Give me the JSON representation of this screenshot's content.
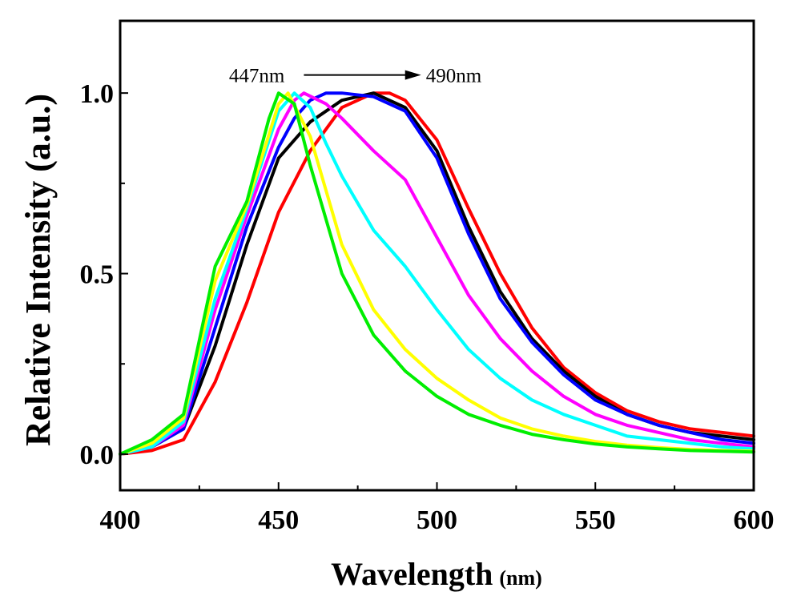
{
  "chart_data": {
    "type": "line",
    "title": "",
    "xlabel": "Wavelength",
    "xlabel_unit": "(nm)",
    "ylabel": "Relative Intensity (a.u.)",
    "xlim": [
      400,
      600
    ],
    "ylim": [
      -0.1,
      1.2
    ],
    "xticks": [
      400,
      450,
      500,
      550,
      600
    ],
    "yticks": [
      0.0,
      0.5,
      1.0
    ],
    "xtick_labels": [
      "400",
      "450",
      "500",
      "550",
      "600"
    ],
    "ytick_labels": [
      "0.0",
      "0.5",
      "1.0"
    ],
    "grid": false,
    "legend": "none",
    "annotation": {
      "start_text": "447nm",
      "end_text": "490nm",
      "arrow_from": 458,
      "arrow_to": 495,
      "y": 1.05
    },
    "series": [
      {
        "color": "#ff0000",
        "x": [
          400,
          410,
          420,
          430,
          440,
          450,
          460,
          470,
          480,
          485,
          490,
          500,
          510,
          520,
          530,
          540,
          550,
          560,
          570,
          580,
          590,
          600
        ],
        "y": [
          0,
          0.01,
          0.04,
          0.2,
          0.42,
          0.67,
          0.84,
          0.96,
          1.0,
          1.0,
          0.98,
          0.87,
          0.68,
          0.5,
          0.35,
          0.24,
          0.17,
          0.12,
          0.09,
          0.07,
          0.06,
          0.05
        ]
      },
      {
        "color": "#000000",
        "x": [
          400,
          410,
          420,
          430,
          440,
          450,
          460,
          470,
          480,
          490,
          500,
          510,
          520,
          530,
          540,
          550,
          560,
          570,
          580,
          590,
          600
        ],
        "y": [
          0,
          0.02,
          0.07,
          0.3,
          0.58,
          0.82,
          0.92,
          0.98,
          1.0,
          0.96,
          0.84,
          0.63,
          0.45,
          0.32,
          0.23,
          0.16,
          0.11,
          0.08,
          0.06,
          0.05,
          0.04
        ]
      },
      {
        "color": "#0000ff",
        "x": [
          400,
          410,
          420,
          430,
          440,
          450,
          455,
          460,
          465,
          470,
          480,
          490,
          500,
          510,
          520,
          530,
          540,
          550,
          560,
          570,
          580,
          590,
          600
        ],
        "y": [
          0,
          0.02,
          0.07,
          0.35,
          0.63,
          0.85,
          0.93,
          0.98,
          1.0,
          1.0,
          0.99,
          0.95,
          0.82,
          0.61,
          0.43,
          0.31,
          0.22,
          0.15,
          0.11,
          0.08,
          0.06,
          0.04,
          0.03
        ]
      },
      {
        "color": "#ff00ff",
        "x": [
          400,
          410,
          420,
          430,
          440,
          450,
          455,
          458,
          465,
          470,
          480,
          490,
          500,
          510,
          520,
          530,
          540,
          550,
          560,
          570,
          580,
          590,
          600
        ],
        "y": [
          0,
          0.02,
          0.08,
          0.4,
          0.66,
          0.9,
          0.98,
          1.0,
          0.97,
          0.93,
          0.84,
          0.76,
          0.6,
          0.44,
          0.32,
          0.23,
          0.16,
          0.11,
          0.08,
          0.06,
          0.04,
          0.03,
          0.02
        ]
      },
      {
        "color": "#00ffff",
        "x": [
          400,
          410,
          420,
          430,
          440,
          450,
          455,
          460,
          465,
          470,
          480,
          490,
          500,
          510,
          520,
          530,
          540,
          550,
          560,
          570,
          580,
          590,
          600
        ],
        "y": [
          0,
          0.02,
          0.09,
          0.43,
          0.68,
          0.95,
          1.0,
          0.96,
          0.86,
          0.77,
          0.62,
          0.52,
          0.4,
          0.29,
          0.21,
          0.15,
          0.11,
          0.08,
          0.05,
          0.04,
          0.03,
          0.02,
          0.015
        ]
      },
      {
        "color": "#ffff00",
        "x": [
          400,
          410,
          420,
          430,
          440,
          450,
          453,
          460,
          470,
          480,
          490,
          500,
          510,
          520,
          530,
          540,
          550,
          560,
          570,
          580,
          590,
          600
        ],
        "y": [
          0,
          0.03,
          0.1,
          0.48,
          0.69,
          0.97,
          1.0,
          0.88,
          0.58,
          0.4,
          0.29,
          0.21,
          0.15,
          0.1,
          0.07,
          0.05,
          0.035,
          0.025,
          0.018,
          0.013,
          0.01,
          0.008
        ]
      },
      {
        "color": "#00ee00",
        "x": [
          400,
          410,
          420,
          430,
          440,
          447,
          450,
          455,
          460,
          470,
          480,
          490,
          500,
          510,
          520,
          530,
          540,
          550,
          560,
          570,
          580,
          590,
          600
        ],
        "y": [
          0,
          0.04,
          0.11,
          0.52,
          0.7,
          0.93,
          1.0,
          0.97,
          0.8,
          0.5,
          0.33,
          0.23,
          0.16,
          0.11,
          0.08,
          0.055,
          0.04,
          0.028,
          0.02,
          0.015,
          0.01,
          0.008,
          0.006
        ]
      }
    ]
  }
}
